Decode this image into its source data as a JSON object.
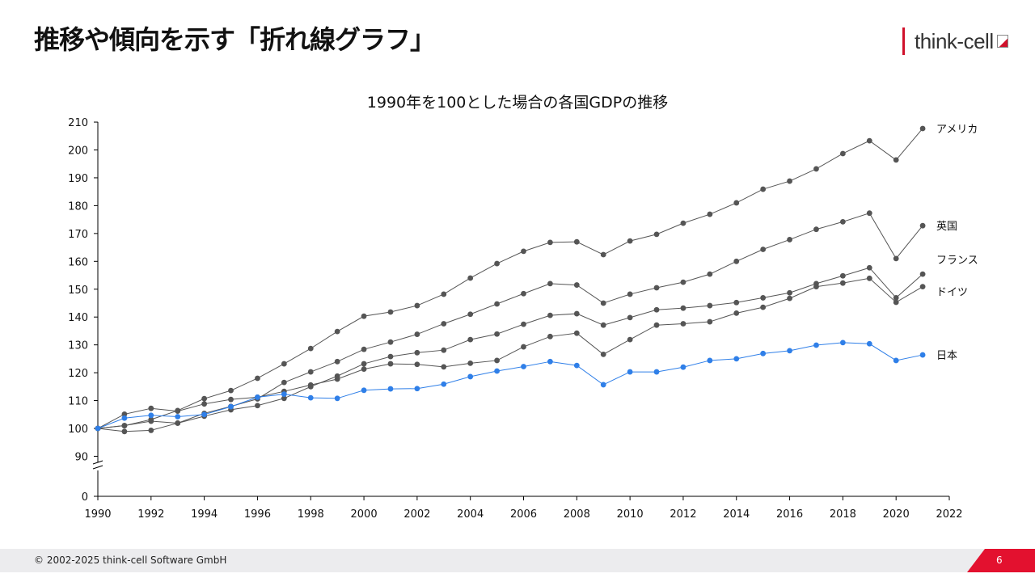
{
  "slide": {
    "title": "推移や傾向を示す「折れ線グラフ」",
    "logo_text": "think-cell",
    "copyright": "© 2002-2025 think-cell Software GmbH",
    "page_number": "6"
  },
  "colors": {
    "gray": "#555555",
    "blue": "#2f7fe8",
    "accent": "#e3112f"
  },
  "chart_data": {
    "type": "line",
    "title": "1990年を100とした場合の各国GDPの推移",
    "xlabel": "",
    "ylabel": "",
    "x": [
      1990,
      1991,
      1992,
      1993,
      1994,
      1995,
      1996,
      1997,
      1998,
      1999,
      2000,
      2001,
      2002,
      2003,
      2004,
      2005,
      2006,
      2007,
      2008,
      2009,
      2010,
      2011,
      2012,
      2013,
      2014,
      2015,
      2016,
      2017,
      2018,
      2019,
      2020,
      2021
    ],
    "xlim": [
      1990,
      2022
    ],
    "xticks": [
      "1990",
      "1992",
      "1994",
      "1996",
      "1998",
      "2000",
      "2002",
      "2004",
      "2006",
      "2008",
      "2010",
      "2012",
      "2014",
      "2016",
      "2018",
      "2020",
      "2022"
    ],
    "ylim": [
      90,
      210
    ],
    "y_axis_break": true,
    "yticks": [
      "0",
      "90",
      "100",
      "110",
      "120",
      "130",
      "140",
      "150",
      "160",
      "170",
      "180",
      "190",
      "200",
      "210"
    ],
    "series": [
      {
        "name": "アメリカ",
        "color": "#555555",
        "values": [
          100,
          101,
          103.2,
          106.4,
          110.7,
          113.6,
          118,
          123.2,
          128.7,
          134.8,
          140.3,
          141.8,
          144.1,
          148.2,
          154,
          159.2,
          163.6,
          166.8,
          167,
          162.4,
          167.3,
          169.7,
          173.7,
          176.9,
          181,
          185.9,
          188.8,
          193.2,
          198.7,
          203.3,
          196.4,
          207.7
        ]
      },
      {
        "name": "英国",
        "color": "#555555",
        "values": [
          100,
          98.9,
          99.3,
          101.9,
          105.4,
          107.9,
          110.6,
          116.5,
          120.3,
          124,
          128.4,
          131,
          133.8,
          137.6,
          141,
          144.7,
          148.4,
          152,
          151.5,
          145,
          148.2,
          150.5,
          152.5,
          155.4,
          160,
          164.3,
          167.8,
          171.5,
          174.2,
          177.3,
          161,
          172.8
        ]
      },
      {
        "name": "フランス",
        "color": "#555555",
        "values": [
          100,
          101,
          102.6,
          101.9,
          104.4,
          106.7,
          108.2,
          110.8,
          115,
          118.8,
          123.2,
          125.8,
          127.2,
          128.1,
          131.9,
          133.9,
          137.4,
          140.6,
          141.2,
          137.1,
          139.8,
          142.6,
          143.2,
          144.1,
          145.2,
          146.9,
          148.7,
          152,
          154.8,
          157.7,
          146.9,
          155.4
        ]
      },
      {
        "name": "ドイツ",
        "color": "#555555",
        "values": [
          100,
          105.1,
          107.2,
          106.2,
          108.8,
          110.4,
          111.2,
          113.3,
          115.6,
          117.7,
          121.3,
          123.2,
          123,
          122.1,
          123.4,
          124.4,
          129.3,
          133,
          134.2,
          126.6,
          131.9,
          137.1,
          137.6,
          138.3,
          141.4,
          143.5,
          146.7,
          150.9,
          152.2,
          153.9,
          145.3,
          150.9
        ]
      },
      {
        "name": "日本",
        "color": "#2f7fe8",
        "values": [
          100,
          103.7,
          104.7,
          104.2,
          105,
          107.8,
          111.2,
          112.3,
          111,
          110.8,
          113.7,
          114.2,
          114.3,
          115.9,
          118.6,
          120.6,
          122.2,
          124,
          122.6,
          115.7,
          120.3,
          120.3,
          122,
          124.4,
          125,
          126.9,
          127.9,
          129.9,
          130.8,
          130.4,
          124.4,
          126.4
        ]
      }
    ]
  }
}
